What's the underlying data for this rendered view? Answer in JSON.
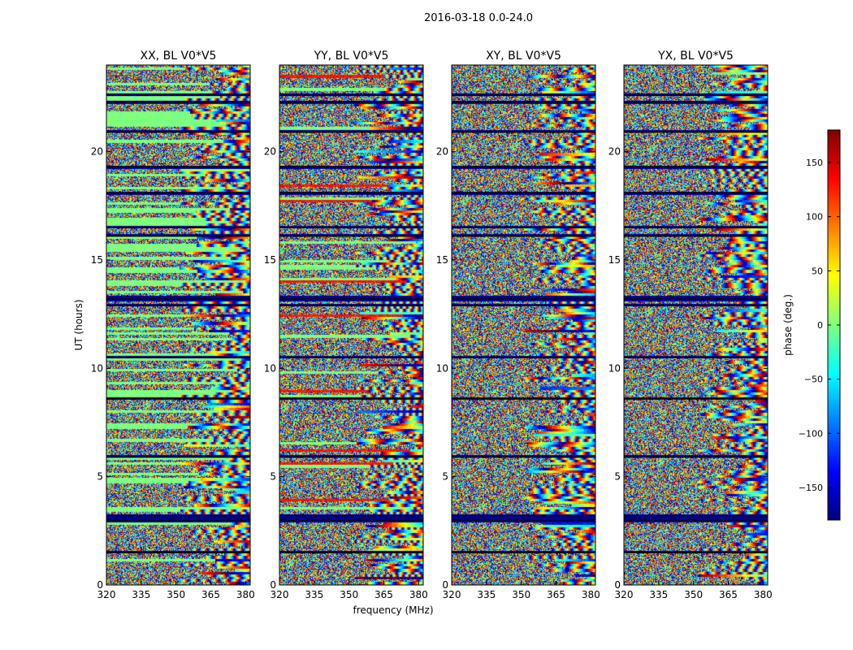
{
  "figure": {
    "suptitle": "2016-03-18 0.0-24.0",
    "xlabel": "frequency (MHz)",
    "ylabel": "UT (hours)"
  },
  "colorbar": {
    "label": "phase (deg.)",
    "range": [
      -180,
      180
    ],
    "ticks": [
      "150",
      "100",
      "50",
      "0",
      "−50",
      "−100",
      "−150"
    ],
    "tick_values": [
      150,
      100,
      50,
      0,
      -50,
      -100,
      -150
    ],
    "colormap": [
      "#00007f",
      "#0000ff",
      "#007fff",
      "#00ffff",
      "#7fff7f",
      "#ffff00",
      "#ff7f00",
      "#ff0000",
      "#7f0000"
    ]
  },
  "chart_data": {
    "type": "heatmap",
    "quantity": "phase (deg.)",
    "xlim": [
      320,
      382
    ],
    "ylim": [
      0,
      24
    ],
    "x_ticks": [
      320,
      335,
      350,
      365,
      380
    ],
    "y_ticks": [
      0,
      5,
      10,
      15,
      20
    ],
    "x_tick_labels": [
      "320",
      "335",
      "350",
      "365",
      "380"
    ],
    "y_tick_labels": [
      "0",
      "5",
      "10",
      "15",
      "20"
    ],
    "panels": [
      {
        "title": "XX, BL V0*V5",
        "show_ylabels": true
      },
      {
        "title": "YY, BL V0*V5",
        "show_ylabels": true
      },
      {
        "title": "XY, BL V0*V5",
        "show_ylabels": true
      },
      {
        "title": "YX, BL V0*V5",
        "show_ylabels": true
      }
    ],
    "flagged_rows_ut": [
      1.5,
      3.0,
      3.2,
      5.9,
      8.6,
      10.5,
      12.9,
      13.2,
      16.1,
      16.5,
      18.1,
      19.3,
      20.9,
      22.3,
      22.6
    ]
  }
}
